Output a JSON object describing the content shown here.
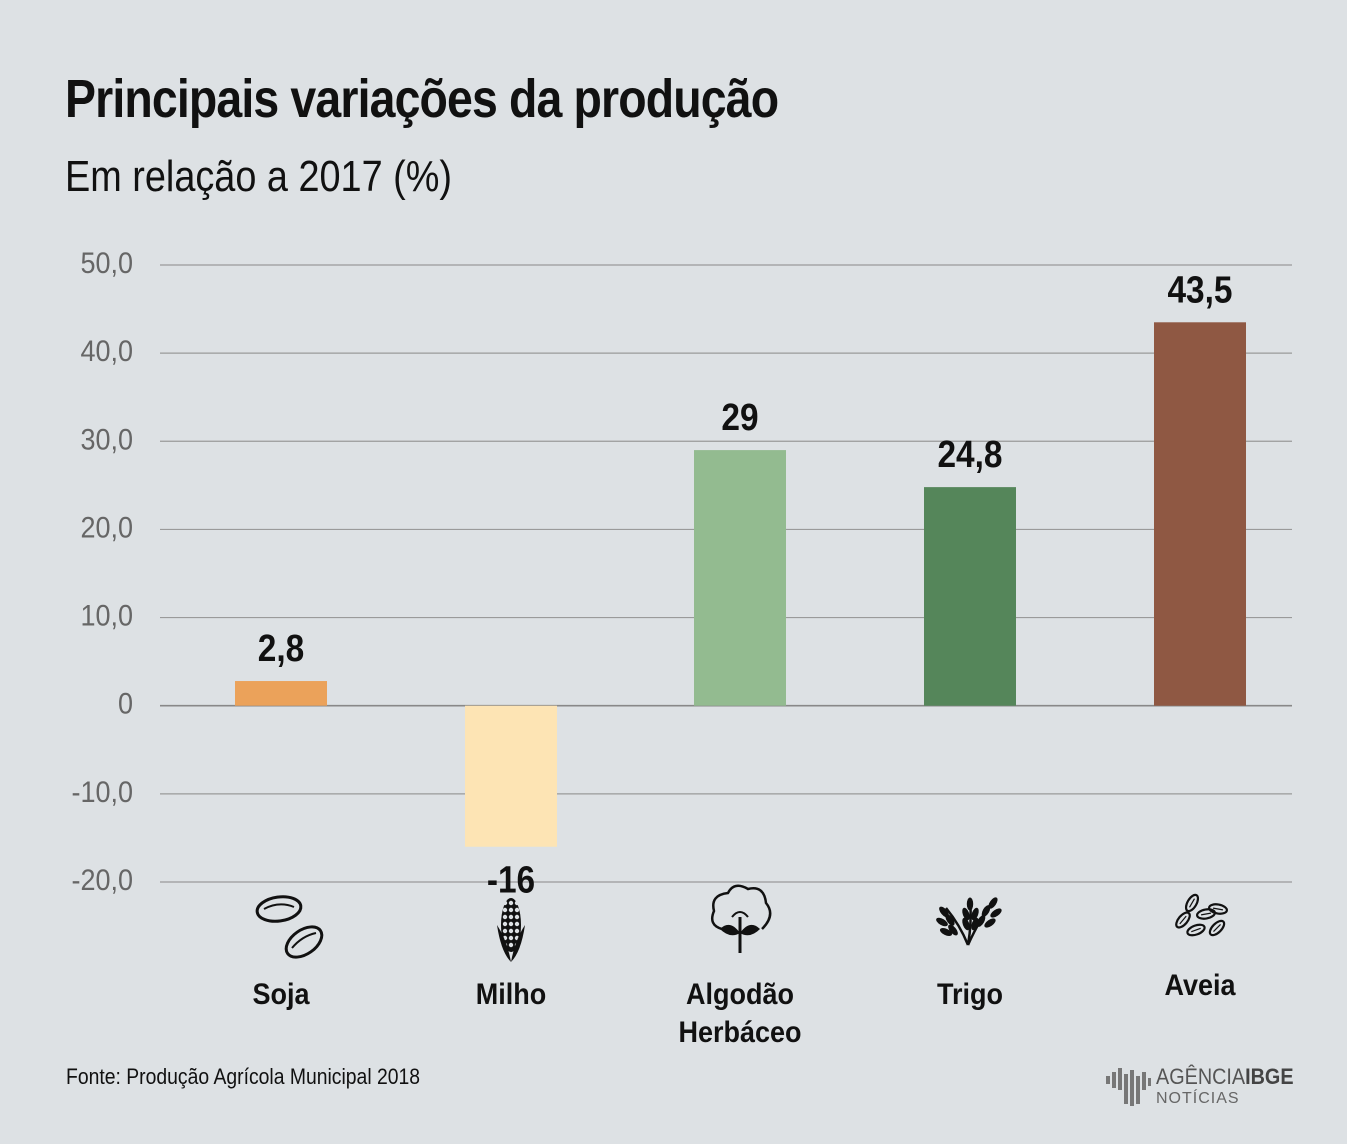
{
  "header": {
    "title": "Principais variações da produção",
    "subtitle": "Em relação a 2017 (%)"
  },
  "chart_data": {
    "type": "bar",
    "title": "Principais variações da produção",
    "subtitle": "Em relação a 2017 (%)",
    "categories": [
      "Soja",
      "Milho",
      "Algodão Herbáceo",
      "Trigo",
      "Aveia"
    ],
    "category_lines": [
      [
        "Soja"
      ],
      [
        "Milho"
      ],
      [
        "Algodão",
        "Herbáceo"
      ],
      [
        "Trigo"
      ],
      [
        "Aveia"
      ]
    ],
    "values": [
      2.8,
      -16,
      29,
      24.8,
      43.5
    ],
    "value_labels": [
      "2,8",
      "-16",
      "29",
      "24,8",
      "43,5"
    ],
    "colors": [
      "#eba25a",
      "#fde4b4",
      "#93bb90",
      "#55865a",
      "#8f5843"
    ],
    "icons": [
      "soy-icon",
      "corn-icon",
      "cotton-icon",
      "wheat-icon",
      "oat-icon"
    ],
    "ylim": [
      -20,
      50
    ],
    "yticks": [
      50,
      40,
      30,
      20,
      10,
      0,
      -10,
      -20
    ],
    "ytick_labels": [
      "50,0",
      "40,0",
      "30,0",
      "20,0",
      "10,0",
      "0",
      "-10,0",
      "-20,0"
    ],
    "grid": true,
    "xlabel": "",
    "ylabel": ""
  },
  "footer": {
    "source": "Fonte: Produção Agrícola Municipal 2018",
    "brand_light": "AGÊNCIA",
    "brand_bold": "IBGE",
    "brand_sub": "NOTÍCIAS"
  }
}
